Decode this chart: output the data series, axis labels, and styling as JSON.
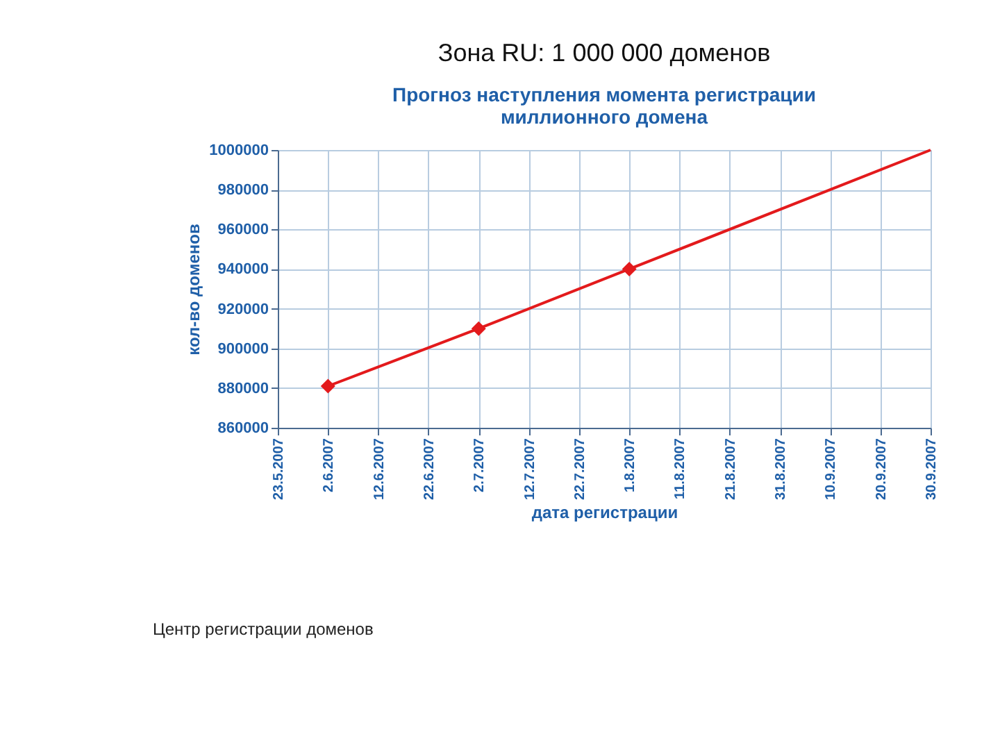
{
  "chart_data": {
    "type": "line",
    "title": "Зона RU: 1 000 000 доменов",
    "subtitle": [
      "Прогноз наступления момента регистрации",
      "миллионного домена"
    ],
    "xlabel": "дата регистрации",
    "ylabel": "кол-во доменов",
    "x": [
      "2007-06-02",
      "2007-07-02",
      "2007-08-01",
      "2007-09-30"
    ],
    "series": [
      {
        "color": "#e31a1c",
        "marker": "none",
        "line_style": "solid",
        "values": [
          881000,
          910000,
          940000,
          1000000
        ]
      },
      {
        "type": "scatter",
        "color": "#e31a1c",
        "marker": "diamond",
        "x": [
          "2007-06-02",
          "2007-07-02",
          "2007-08-01"
        ],
        "values": [
          881000,
          910000,
          940000
        ]
      }
    ],
    "xlim": [
      "2007-05-23",
      "2007-09-30"
    ],
    "xticks": [
      {
        "value": "2007-05-23",
        "label": "23.5.2007"
      },
      {
        "value": "2007-06-02",
        "label": "2.6.2007"
      },
      {
        "value": "2007-06-12",
        "label": "12.6.2007"
      },
      {
        "value": "2007-06-22",
        "label": "22.6.2007"
      },
      {
        "value": "2007-07-02",
        "label": "2.7.2007"
      },
      {
        "value": "2007-07-12",
        "label": "12.7.2007"
      },
      {
        "value": "2007-07-22",
        "label": "22.7.2007"
      },
      {
        "value": "2007-08-01",
        "label": "1.8.2007"
      },
      {
        "value": "2007-08-11",
        "label": "11.8.2007"
      },
      {
        "value": "2007-08-21",
        "label": "21.8.2007"
      },
      {
        "value": "2007-08-31",
        "label": "31.8.2007"
      },
      {
        "value": "2007-09-10",
        "label": "10.9.2007"
      },
      {
        "value": "2007-09-20",
        "label": "20.9.2007"
      },
      {
        "value": "2007-09-30",
        "label": "30.9.2007"
      }
    ],
    "ylim": [
      860000,
      1000000
    ],
    "yticks": [
      860000,
      880000,
      900000,
      920000,
      940000,
      960000,
      980000,
      1000000
    ],
    "grid": true,
    "annotations": [
      "Центр регистрации доменов"
    ]
  }
}
